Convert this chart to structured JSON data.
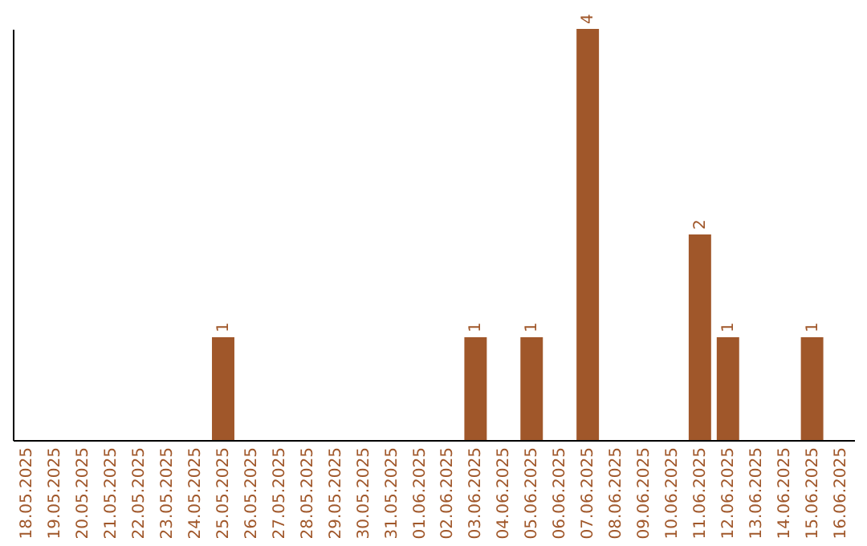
{
  "chart_data": {
    "type": "bar",
    "categories": [
      "18.05.2025",
      "19.05.2025",
      "20.05.2025",
      "21.05.2025",
      "22.05.2025",
      "23.05.2025",
      "24.05.2025",
      "25.05.2025",
      "26.05.2025",
      "27.05.2025",
      "28.05.2025",
      "29.05.2025",
      "30.05.2025",
      "31.05.2025",
      "01.06.2025",
      "02.06.2025",
      "03.06.2025",
      "04.06.2025",
      "05.06.2025",
      "06.06.2025",
      "07.06.2025",
      "08.06.2025",
      "09.06.2025",
      "10.06.2025",
      "11.06.2025",
      "12.06.2025",
      "13.06.2025",
      "14.06.2025",
      "15.06.2025",
      "16.06.2025"
    ],
    "values": [
      0,
      0,
      0,
      0,
      0,
      0,
      0,
      1,
      0,
      0,
      0,
      0,
      0,
      0,
      0,
      0,
      1,
      0,
      1,
      0,
      4,
      0,
      0,
      0,
      2,
      1,
      0,
      0,
      1,
      0
    ],
    "value_labels": [
      null,
      null,
      null,
      null,
      null,
      null,
      null,
      "1",
      null,
      null,
      null,
      null,
      null,
      null,
      null,
      null,
      "1",
      null,
      "1",
      null,
      "4",
      null,
      null,
      null,
      "2",
      "1",
      null,
      null,
      "1",
      null
    ],
    "color": "#a0572a",
    "grid": false,
    "tick_labels": "x"
  }
}
